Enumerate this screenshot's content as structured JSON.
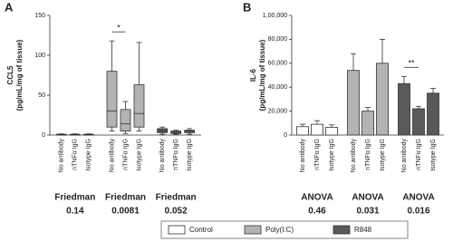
{
  "chart_data": [
    {
      "type": "box",
      "panel_label": "A",
      "ylabel": [
        "CCL5",
        "(pg/mL/mg of tissue)"
      ],
      "ylim": [
        0,
        150
      ],
      "yticks": [
        0,
        50,
        100,
        150
      ],
      "categories": [
        "No antibody",
        "nTNFα IgG",
        "Isotype IgG"
      ],
      "series": [
        {
          "name": "Control",
          "color": "#ffffff",
          "stat_test": "Friedman",
          "p_value": "0.14",
          "stats": [
            {
              "min": 0,
              "q1": 0,
              "median": 0.5,
              "q3": 1,
              "max": 1.5
            },
            {
              "min": 0,
              "q1": 0,
              "median": 0.5,
              "q3": 1,
              "max": 1.5
            },
            {
              "min": 0,
              "q1": 0,
              "median": 0.5,
              "q3": 1,
              "max": 1.5
            }
          ]
        },
        {
          "name": "Poly(I:C)",
          "color": "#b3b3b3",
          "stat_test": "Friedman",
          "p_value": "0.0081",
          "significance": "*",
          "stats": [
            {
              "min": 5,
              "q1": 10,
              "median": 30,
              "q3": 80,
              "max": 118
            },
            {
              "min": 2,
              "q1": 5,
              "median": 14,
              "q3": 32,
              "max": 42
            },
            {
              "min": 5,
              "q1": 10,
              "median": 27,
              "q3": 63,
              "max": 116
            }
          ]
        },
        {
          "name": "R848",
          "color": "#595959",
          "stat_test": "Friedman",
          "p_value": "0.052",
          "stats": [
            {
              "min": 1,
              "q1": 3,
              "median": 5,
              "q3": 8,
              "max": 10
            },
            {
              "min": 1,
              "q1": 2,
              "median": 3,
              "q3": 5,
              "max": 6
            },
            {
              "min": 1,
              "q1": 3,
              "median": 5,
              "q3": 6,
              "max": 8
            }
          ]
        }
      ]
    },
    {
      "type": "bar",
      "panel_label": "B",
      "ylabel": [
        "IL-6",
        "(pg/mL/mg of tissue)"
      ],
      "ylim": [
        0,
        100000
      ],
      "yticks": [
        0,
        {
          "value": 20000,
          "label": "20,000"
        },
        {
          "value": 40000,
          "label": "40,000"
        },
        {
          "value": 60000,
          "label": "60,000"
        },
        {
          "value": 80000,
          "label": "80,000"
        },
        {
          "value": 100000,
          "label": "1,00,000"
        }
      ],
      "categories": [
        "No antibody",
        "nTNFα IgG",
        "Isotype IgG"
      ],
      "series": [
        {
          "color": "#ffffff",
          "stat_test": "ANOVA",
          "p_value": "0.46",
          "values": [
            7000,
            9000,
            6500
          ],
          "errors": [
            2000,
            3000,
            2000
          ]
        },
        {
          "color": "#b3b3b3",
          "stat_test": "ANOVA",
          "p_value": "0.031",
          "values": [
            54000,
            20000,
            60000
          ],
          "errors": [
            14000,
            3000,
            20000
          ]
        },
        {
          "color": "#595959",
          "stat_test": "ANOVA",
          "p_value": "0.016",
          "significance": "**",
          "values": [
            43000,
            22000,
            35000
          ],
          "errors": [
            6000,
            2000,
            4000
          ]
        }
      ]
    }
  ]
}
